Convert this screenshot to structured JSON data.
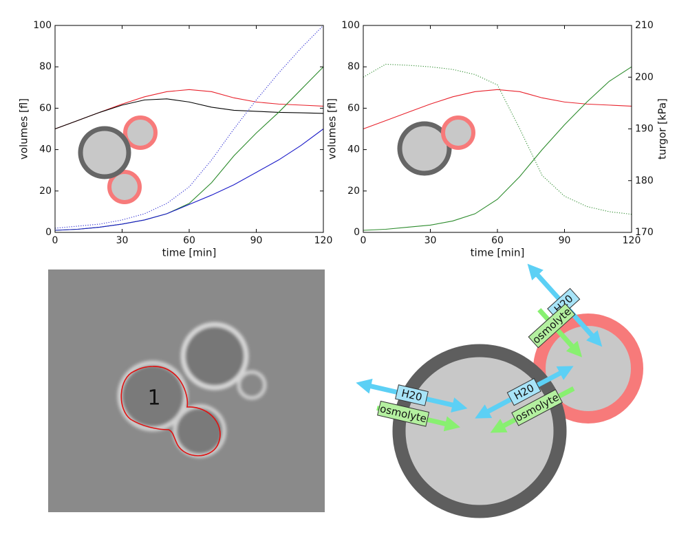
{
  "chart_data": [
    {
      "type": "line",
      "x": [
        0,
        10,
        20,
        30,
        40,
        50,
        60,
        70,
        80,
        90,
        100,
        110,
        120
      ],
      "xlim": [
        0,
        120
      ],
      "xticks": [
        0,
        30,
        60,
        90,
        120
      ],
      "ylim": [
        0,
        100
      ],
      "yticks": [
        0,
        20,
        40,
        60,
        80,
        100
      ],
      "xlabel": "time [min]",
      "ylabel": "volumes [fl]",
      "series": [
        {
          "color": "#e8202a",
          "linestyle": "solid",
          "values": [
            50,
            54,
            58,
            62,
            65.5,
            68,
            69,
            68,
            65,
            63,
            62,
            61.5,
            61
          ]
        },
        {
          "color": "#000000",
          "linestyle": "solid",
          "values": [
            50,
            54,
            58,
            61.5,
            64,
            64.5,
            63,
            60.5,
            59,
            58.5,
            58,
            57.8,
            57.5
          ]
        },
        {
          "color": "#2020d0",
          "linestyle": "dotted",
          "values": [
            2,
            3,
            4,
            6,
            9,
            14,
            22,
            35,
            50,
            64,
            77,
            89,
            100
          ]
        },
        {
          "color": "#2a8a2a",
          "linestyle": "solid",
          "values": [
            1,
            1.5,
            2.5,
            4,
            6,
            9,
            14,
            24,
            37,
            48,
            58,
            69,
            80
          ]
        },
        {
          "color": "#1818c8",
          "linestyle": "solid",
          "values": [
            1,
            1.5,
            2.5,
            4,
            6,
            9,
            13.5,
            18,
            23,
            29,
            35,
            42,
            50
          ]
        }
      ]
    },
    {
      "type": "line",
      "x": [
        0,
        10,
        20,
        30,
        40,
        50,
        60,
        70,
        80,
        90,
        100,
        110,
        120
      ],
      "xlim": [
        0,
        120
      ],
      "xticks": [
        0,
        30,
        60,
        90,
        120
      ],
      "ylim": [
        0,
        100
      ],
      "yticks": [
        0,
        20,
        40,
        60,
        80,
        100
      ],
      "y2lim": [
        170,
        210
      ],
      "y2ticks": [
        170,
        180,
        190,
        200,
        210
      ],
      "xlabel": "time [min]",
      "ylabel": "volumes [fl]",
      "y2label": "turgor [kPa]",
      "series": [
        {
          "color": "#e8202a",
          "linestyle": "solid",
          "values": [
            50,
            54,
            58,
            62,
            65.5,
            68,
            69,
            68,
            65,
            63,
            62,
            61.5,
            61
          ]
        },
        {
          "color": "#2a8a2a",
          "linestyle": "solid",
          "values": [
            1,
            1.5,
            2.5,
            3.5,
            5.5,
            9,
            16,
            27,
            40,
            52,
            63,
            73,
            80
          ]
        },
        {
          "color": "#2a8a2a",
          "linestyle": "dotted",
          "axis": "y2",
          "values": [
            200,
            202.5,
            202.3,
            202,
            201.5,
            200.5,
            198.5,
            190,
            181,
            177,
            175,
            174,
            173.5
          ]
        }
      ]
    }
  ],
  "micrograph": {
    "label": "1"
  },
  "diagram": {
    "water": [
      "H20",
      "H20",
      "H20"
    ],
    "osmolyte": [
      "osmolyte",
      "osmolyte",
      "osmolyte"
    ]
  }
}
